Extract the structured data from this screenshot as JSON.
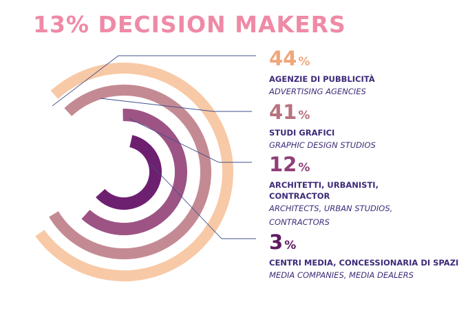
{
  "title": "13% DECISION MAKERS",
  "colors": {
    "title": "#ef8aa6",
    "label": "#3d2a78",
    "leader": "#3d4f8a"
  },
  "chart_data": {
    "type": "radial-bar",
    "title": "13% DECISION MAKERS",
    "unit": "%",
    "series": [
      {
        "value": 44,
        "percent_sign": "%",
        "label_it": "AGENZIE DI PUBBLICITÀ",
        "label_en": "ADVERTISING AGENCIES",
        "color": "#f8c9a6",
        "pct_color": "#f0a77a"
      },
      {
        "value": 41,
        "percent_sign": "%",
        "label_it": "STUDI GRAFICI",
        "label_en": "GRAPHIC DESIGN STUDIOS",
        "color": "#c48a94",
        "pct_color": "#b8727f"
      },
      {
        "value": 12,
        "percent_sign": "%",
        "label_it": "ARCHITETTI, URBANISTI, CONTRACTOR",
        "label_en": "ARCHITECTS, URBAN STUDIOS, CONTRACTORS",
        "color": "#9d5485",
        "pct_color": "#8f3f78"
      },
      {
        "value": 3,
        "percent_sign": "%",
        "label_it": "CENTRI MEDIA, CONCESSIONARIA DI SPAZI",
        "label_en": "MEDIA COMPANIES, MEDIA DEALERS",
        "color": "#6e2070",
        "pct_color": "#5e1a62"
      }
    ]
  }
}
